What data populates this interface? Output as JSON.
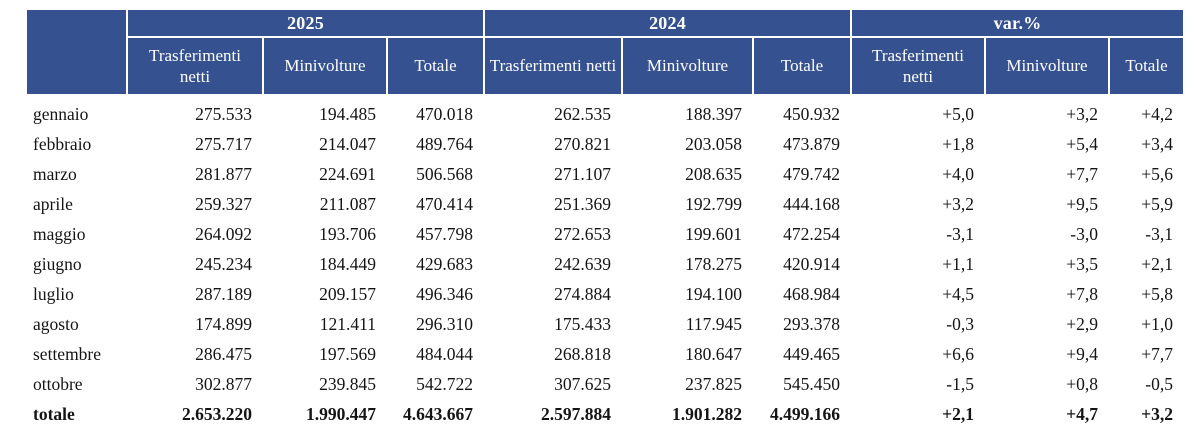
{
  "colors": {
    "header_bg": "#35518F",
    "header_text": "#FFFFFF",
    "body_text": "#141414",
    "separator": "#FFFFFF"
  },
  "table": {
    "groups": [
      {
        "label": "2025"
      },
      {
        "label": "2024"
      },
      {
        "label": "var.%"
      }
    ],
    "sub_headers": [
      "Trasferimenti netti",
      "Minivolture",
      "Totale"
    ],
    "rows": [
      {
        "label": "gennaio",
        "bold": false,
        "values": [
          "275.533",
          "194.485",
          "470.018",
          "262.535",
          "188.397",
          "450.932",
          "+5,0",
          "+3,2",
          "+4,2"
        ]
      },
      {
        "label": "febbraio",
        "bold": false,
        "values": [
          "275.717",
          "214.047",
          "489.764",
          "270.821",
          "203.058",
          "473.879",
          "+1,8",
          "+5,4",
          "+3,4"
        ]
      },
      {
        "label": "marzo",
        "bold": false,
        "values": [
          "281.877",
          "224.691",
          "506.568",
          "271.107",
          "208.635",
          "479.742",
          "+4,0",
          "+7,7",
          "+5,6"
        ]
      },
      {
        "label": "aprile",
        "bold": false,
        "values": [
          "259.327",
          "211.087",
          "470.414",
          "251.369",
          "192.799",
          "444.168",
          "+3,2",
          "+9,5",
          "+5,9"
        ]
      },
      {
        "label": "maggio",
        "bold": false,
        "values": [
          "264.092",
          "193.706",
          "457.798",
          "272.653",
          "199.601",
          "472.254",
          "-3,1",
          "-3,0",
          "-3,1"
        ]
      },
      {
        "label": "giugno",
        "bold": false,
        "values": [
          "245.234",
          "184.449",
          "429.683",
          "242.639",
          "178.275",
          "420.914",
          "+1,1",
          "+3,5",
          "+2,1"
        ]
      },
      {
        "label": "luglio",
        "bold": false,
        "values": [
          "287.189",
          "209.157",
          "496.346",
          "274.884",
          "194.100",
          "468.984",
          "+4,5",
          "+7,8",
          "+5,8"
        ]
      },
      {
        "label": "agosto",
        "bold": false,
        "values": [
          "174.899",
          "121.411",
          "296.310",
          "175.433",
          "117.945",
          "293.378",
          "-0,3",
          "+2,9",
          "+1,0"
        ]
      },
      {
        "label": "settembre",
        "bold": false,
        "values": [
          "286.475",
          "197.569",
          "484.044",
          "268.818",
          "180.647",
          "449.465",
          "+6,6",
          "+9,4",
          "+7,7"
        ]
      },
      {
        "label": "ottobre",
        "bold": false,
        "values": [
          "302.877",
          "239.845",
          "542.722",
          "307.625",
          "237.825",
          "545.450",
          "-1,5",
          "+0,8",
          "-0,5"
        ]
      },
      {
        "label": "totale",
        "bold": true,
        "values": [
          "2.653.220",
          "1.990.447",
          "4.643.667",
          "2.597.884",
          "1.901.282",
          "4.499.166",
          "+2,1",
          "+4,7",
          "+3,2"
        ]
      }
    ]
  }
}
